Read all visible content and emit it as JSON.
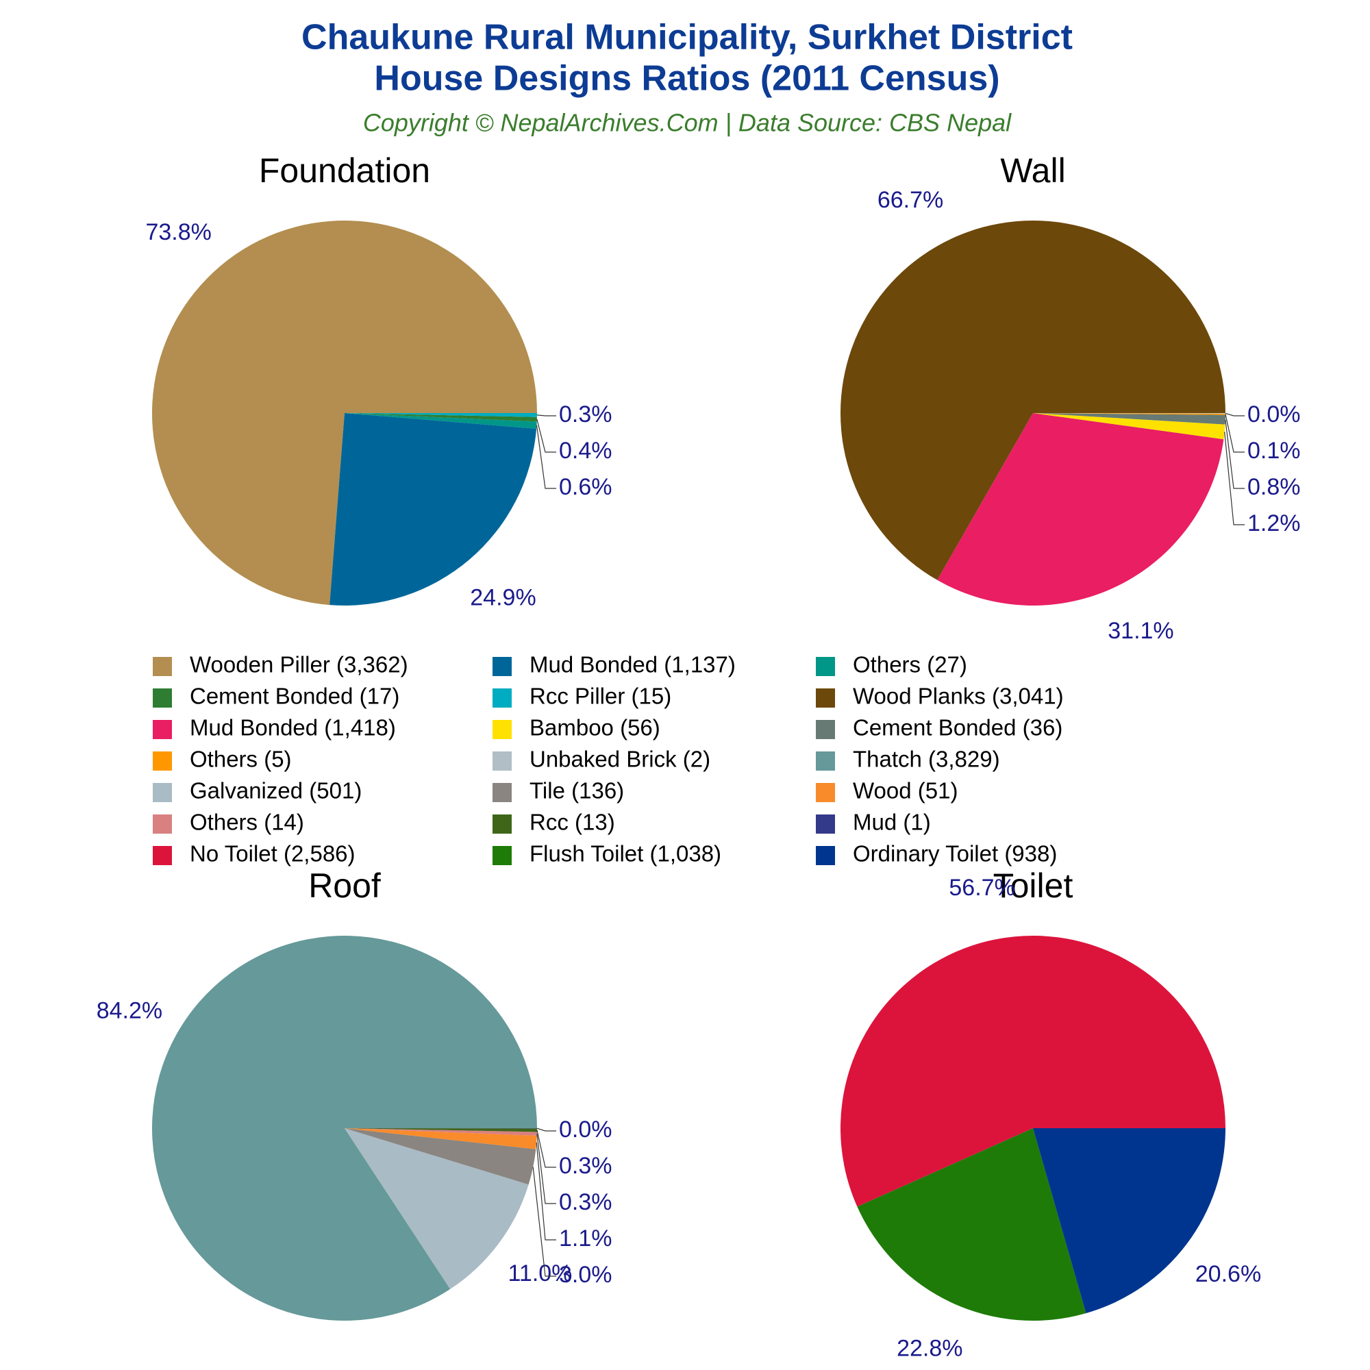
{
  "title": [
    "Chaukune Rural Municipality, Surkhet District",
    "House Designs Ratios (2011 Census)"
  ],
  "subtitle": "Copyright © NepalArchives.Com | Data Source: CBS Nepal",
  "chart_data": [
    {
      "type": "pie",
      "title": "Foundation",
      "labels": [
        "Wooden Piller (3,362)",
        "Mud Bonded (1,137)",
        "Others (27)",
        "Cement Bonded (17)",
        "Rcc Piller (15)"
      ],
      "values": [
        3362,
        1137,
        27,
        17,
        15
      ],
      "percent_labels": [
        "73.8%",
        "24.9%",
        "0.6%",
        "0.4%",
        "0.3%"
      ],
      "colors": [
        "#b38e50",
        "#006699",
        "#009688",
        "#2e7d32",
        "#00acc1"
      ]
    },
    {
      "type": "pie",
      "title": "Wall",
      "labels": [
        "Wood Planks (3,041)",
        "Mud Bonded (1,418)",
        "Bamboo (56)",
        "Cement Bonded (36)",
        "Others (5)",
        "Unbaked Brick (2)"
      ],
      "values": [
        3041,
        1418,
        56,
        36,
        5,
        2
      ],
      "percent_labels": [
        "66.7%",
        "31.1%",
        "1.2%",
        "0.8%",
        "0.1%",
        "0.0%"
      ],
      "colors": [
        "#6d480b",
        "#e91e63",
        "#ffe100",
        "#687a74",
        "#ff9800",
        "#b0bec5"
      ]
    },
    {
      "type": "pie",
      "title": "Roof",
      "labels": [
        "Thatch (3,829)",
        "Galvanized (501)",
        "Tile (136)",
        "Wood (51)",
        "Others (14)",
        "Rcc (13)",
        "Mud (1)"
      ],
      "values": [
        3829,
        501,
        136,
        51,
        14,
        13,
        1
      ],
      "percent_labels": [
        "84.2%",
        "11.0%",
        "3.0%",
        "1.1%",
        "0.3%",
        "0.3%",
        "0.0%"
      ],
      "colors": [
        "#669999",
        "#a9bbc5",
        "#8a8580",
        "#f98b2a",
        "#d98080",
        "#3f6618",
        "#333a8a"
      ]
    },
    {
      "type": "pie",
      "title": "Toilet",
      "labels": [
        "No Toilet (2,586)",
        "Flush Toilet (1,038)",
        "Ordinary Toilet (938)"
      ],
      "values": [
        2586,
        1038,
        938
      ],
      "percent_labels": [
        "56.7%",
        "22.8%",
        "20.6%"
      ],
      "colors": [
        "#dc143c",
        "#1e7b08",
        "#00358f"
      ]
    }
  ]
}
